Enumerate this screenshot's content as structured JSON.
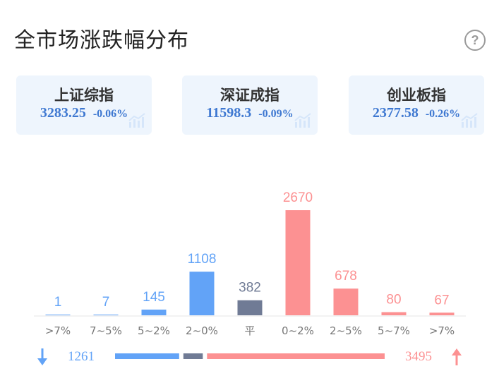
{
  "header": {
    "title": "全市场涨跌幅分布",
    "help_icon": "?"
  },
  "indices": [
    {
      "name": "上证综指",
      "value": "3283.25",
      "change": "-0.06%"
    },
    {
      "name": "深证成指",
      "value": "11598.3",
      "change": "-0.09%"
    },
    {
      "name": "创业板指",
      "value": "2377.58",
      "change": "-0.26%"
    }
  ],
  "colors": {
    "down": "#62a3f7",
    "flat": "#707b95",
    "up": "#fc9192",
    "axis_text": "#777777"
  },
  "chart_data": {
    "type": "bar",
    "categories": [
      ">7%",
      "7~5%",
      "5~2%",
      "2~0%",
      "平",
      "0~2%",
      "2~5%",
      "5~7%",
      ">7%"
    ],
    "values": [
      1,
      7,
      145,
      1108,
      382,
      2670,
      678,
      80,
      67
    ],
    "bar_direction": [
      "down",
      "down",
      "down",
      "down",
      "flat",
      "up",
      "up",
      "up",
      "up"
    ],
    "ylim": [
      0,
      2670
    ]
  },
  "summary": {
    "down_count": "1261",
    "up_count": "3495"
  }
}
